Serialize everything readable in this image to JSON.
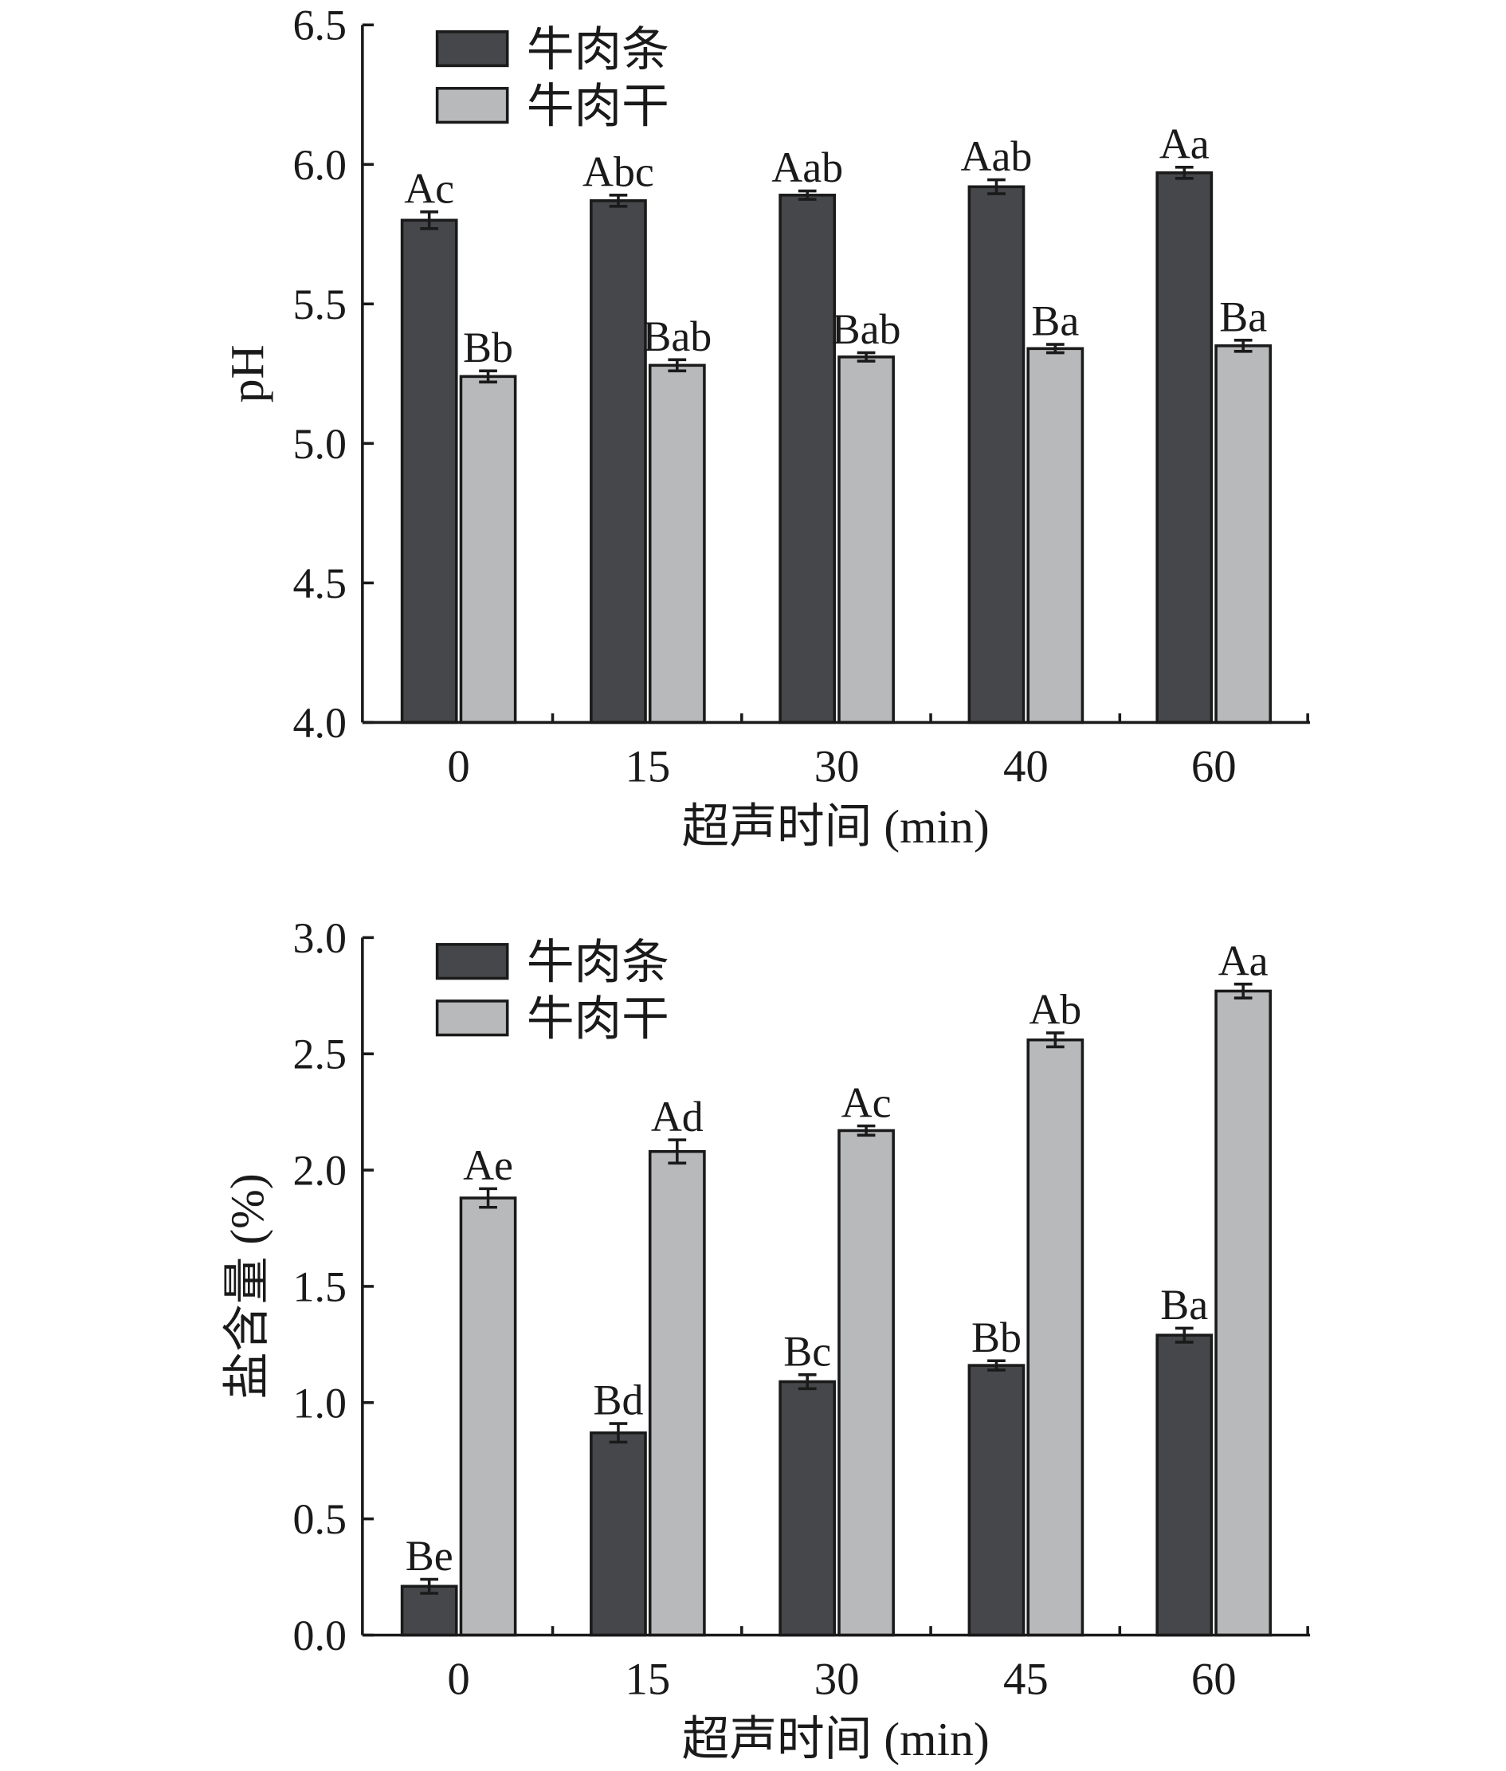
{
  "chart_data": [
    {
      "type": "bar",
      "title": "",
      "xlabel": "超声时间 (min)",
      "ylabel": "pH",
      "ylim": [
        4.0,
        6.5
      ],
      "yticks": [
        "4.0",
        "4.5",
        "5.0",
        "5.5",
        "6.0",
        "6.5"
      ],
      "ytick_values": [
        4.0,
        4.5,
        5.0,
        5.5,
        6.0,
        6.5
      ],
      "categories": [
        "0",
        "15",
        "30",
        "40",
        "60"
      ],
      "legend_position": "top-left",
      "series": [
        {
          "name": "牛肉条",
          "color": "#46474a",
          "values": [
            5.8,
            5.87,
            5.89,
            5.92,
            5.97
          ],
          "errors": [
            0.03,
            0.02,
            0.015,
            0.025,
            0.02
          ],
          "labels": [
            "Ac",
            "Abc",
            "Aab",
            "Aab",
            "Aa"
          ]
        },
        {
          "name": "牛肉干",
          "color": "#b8b9bb",
          "values": [
            5.24,
            5.28,
            5.31,
            5.34,
            5.35
          ],
          "errors": [
            0.02,
            0.02,
            0.015,
            0.015,
            0.02
          ],
          "labels": [
            "Bb",
            "Bab",
            "Bab",
            "Ba",
            "Ba"
          ]
        }
      ]
    },
    {
      "type": "bar",
      "title": "",
      "xlabel": "超声时间 (min)",
      "ylabel": "盐含量 (%)",
      "ylim": [
        0.0,
        3.0
      ],
      "yticks": [
        "0.0",
        "0.5",
        "1.0",
        "1.5",
        "2.0",
        "2.5",
        "3.0"
      ],
      "ytick_values": [
        0.0,
        0.5,
        1.0,
        1.5,
        2.0,
        2.5,
        3.0
      ],
      "categories": [
        "0",
        "15",
        "30",
        "45",
        "60"
      ],
      "legend_position": "top-left",
      "series": [
        {
          "name": "牛肉条",
          "color": "#46474a",
          "values": [
            0.21,
            0.87,
            1.09,
            1.16,
            1.29
          ],
          "errors": [
            0.03,
            0.04,
            0.03,
            0.02,
            0.03
          ],
          "labels": [
            "Be",
            "Bd",
            "Bc",
            "Bb",
            "Ba"
          ]
        },
        {
          "name": "牛肉干",
          "color": "#b8b9bb",
          "values": [
            1.88,
            2.08,
            2.17,
            2.56,
            2.77
          ],
          "errors": [
            0.04,
            0.05,
            0.02,
            0.03,
            0.03
          ],
          "labels": [
            "Ae",
            "Ad",
            "Ac",
            "Ab",
            "Aa"
          ]
        }
      ]
    }
  ]
}
